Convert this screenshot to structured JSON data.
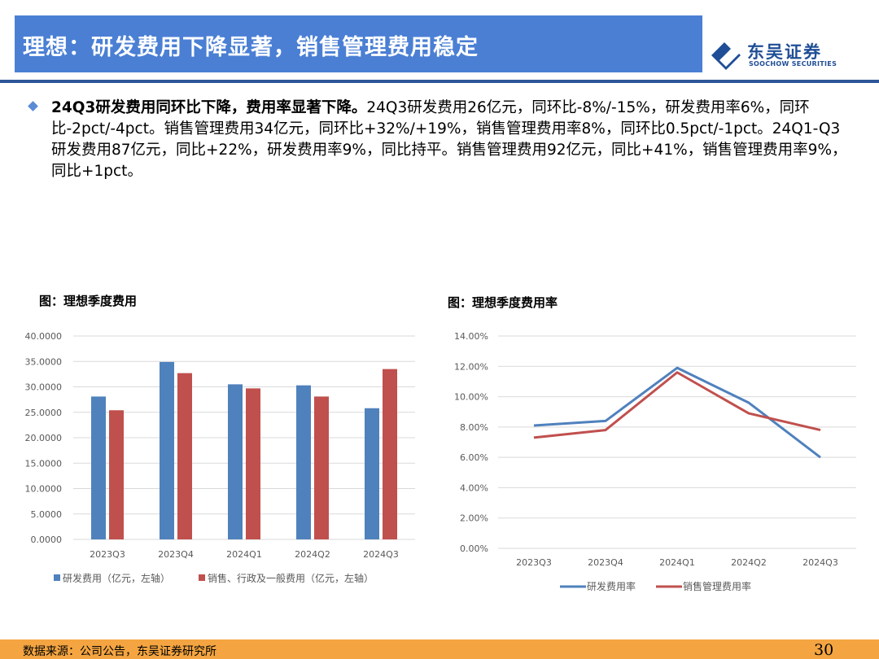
{
  "header": {
    "title": "理想：研发费用下降显著，销售管理费用稳定",
    "logo_cn": "东吴证券",
    "logo_en": "SOOCHOW SECURITIES"
  },
  "body": {
    "bold_lead": "24Q3研发费用同环比下降，费用率显著下降。",
    "text": "24Q3研发费用26亿元，同环比-8%/-15%，研发费用率6%，同环比-2pct/-4pct。销售管理费用34亿元，同环比+32%/+19%，销售管理费用率8%，同环比0.5pct/-1pct。24Q1-Q3研发费用87亿元，同比+22%，研发费用率9%，同比持平。销售管理费用92亿元，同比+41%，销售管理费用率9%，同比+1pct。"
  },
  "figure_left_title": "图：理想季度费用",
  "figure_right_title": "图：理想季度费用率",
  "colors": {
    "blue": "#4f81bd",
    "red": "#c0504d",
    "title_bar": "#4a7fd4",
    "footer": "#f4a541"
  },
  "chart_data": [
    {
      "type": "bar",
      "categories": [
        "2023Q3",
        "2023Q4",
        "2024Q1",
        "2024Q2",
        "2024Q3"
      ],
      "series": [
        {
          "name": "研发费用（亿元，左轴）",
          "values": [
            28.1,
            34.9,
            30.5,
            30.3,
            25.8
          ]
        },
        {
          "name": "销售、行政及一般费用（亿元，左轴）",
          "values": [
            25.4,
            32.7,
            29.7,
            28.1,
            33.5
          ]
        }
      ],
      "yticks": [
        "0.0000",
        "5.0000",
        "10.0000",
        "15.0000",
        "20.0000",
        "25.0000",
        "30.0000",
        "35.0000",
        "40.0000"
      ],
      "ylim": [
        0,
        40
      ],
      "grid": true,
      "legend": "bottom"
    },
    {
      "type": "line",
      "categories": [
        "2023Q3",
        "2023Q4",
        "2024Q1",
        "2024Q2",
        "2024Q3"
      ],
      "series": [
        {
          "name": "研发费用率",
          "values": [
            8.1,
            8.4,
            11.9,
            9.6,
            6.0
          ]
        },
        {
          "name": "销售管理费用率",
          "values": [
            7.3,
            7.8,
            11.6,
            8.9,
            7.8
          ]
        }
      ],
      "yticks": [
        "0.00%",
        "2.00%",
        "4.00%",
        "6.00%",
        "8.00%",
        "10.00%",
        "12.00%",
        "14.00%"
      ],
      "ylim": [
        0,
        14
      ],
      "grid": true,
      "legend": "bottom"
    }
  ],
  "footer": {
    "source": "数据来源：公司公告，东吴证券研究所",
    "page": "30"
  }
}
